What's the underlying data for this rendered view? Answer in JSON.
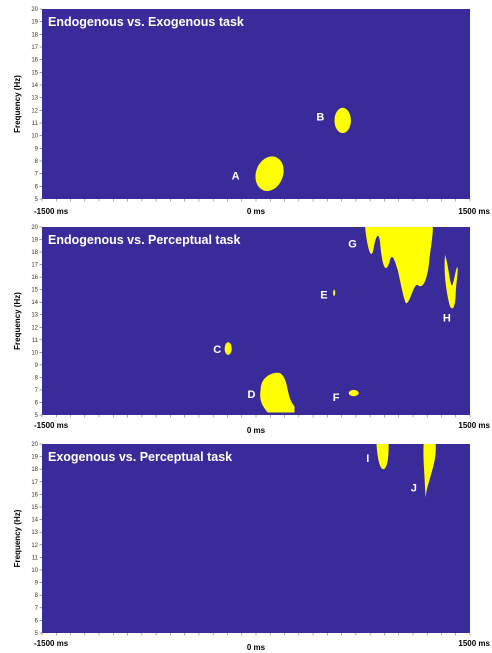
{
  "colors": {
    "background": "#3a2b9b",
    "cluster": "#ffff00",
    "panel_text": "#ffffff",
    "axis_text": "#000000"
  },
  "axis": {
    "ylabel": "Frequency (Hz)",
    "yticks": [
      "5",
      "6",
      "7",
      "8",
      "9",
      "10",
      "11",
      "12",
      "13",
      "14",
      "15",
      "16",
      "17",
      "18",
      "19",
      "20"
    ],
    "ylim": [
      5,
      20
    ],
    "xlim": [
      -1500,
      1500
    ],
    "xticks": [
      "-1500 ms",
      "0 ms",
      "1500 ms"
    ]
  },
  "chart_data": [
    {
      "type": "heatmap",
      "title": "Endogenous vs. Exogenous task",
      "clusters": [
        {
          "label": "A",
          "time_ms": [
            0,
            190
          ],
          "freq_hz": [
            5.6,
            8.4
          ]
        },
        {
          "label": "B",
          "time_ms": [
            550,
            665
          ],
          "freq_hz": [
            10.2,
            12.2
          ]
        }
      ]
    },
    {
      "type": "heatmap",
      "title": "Endogenous vs. Perceptual task",
      "clusters": [
        {
          "label": "C",
          "time_ms": [
            -220,
            -170
          ],
          "freq_hz": [
            9.8,
            10.8
          ]
        },
        {
          "label": "D",
          "time_ms": [
            20,
            270
          ],
          "freq_hz": [
            5.2,
            8.5
          ]
        },
        {
          "label": "E",
          "time_ms": [
            540,
            555
          ],
          "freq_hz": [
            14.5,
            15.0
          ]
        },
        {
          "label": "F",
          "time_ms": [
            650,
            720
          ],
          "freq_hz": [
            6.5,
            7.0
          ]
        },
        {
          "label": "G",
          "time_ms": [
            765,
            1240
          ],
          "freq_hz": [
            13.8,
            20
          ]
        },
        {
          "label": "H",
          "time_ms": [
            1320,
            1420
          ],
          "freq_hz": [
            13.3,
            17.8
          ]
        }
      ]
    },
    {
      "type": "heatmap",
      "title": "Exogenous vs. Perceptual task",
      "clusters": [
        {
          "label": "I",
          "time_ms": [
            845,
            930
          ],
          "freq_hz": [
            18.0,
            20
          ]
        },
        {
          "label": "J",
          "time_ms": [
            1170,
            1260
          ],
          "freq_hz": [
            15.7,
            20
          ]
        }
      ]
    }
  ]
}
